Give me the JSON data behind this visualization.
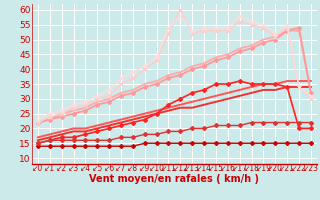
{
  "background_color": "#cceaea",
  "grid_color": "#ffffff",
  "xlabel": "Vent moyen/en rafales ( km/h )",
  "xlabel_color": "#cc0000",
  "xlabel_fontsize": 7,
  "yticks": [
    10,
    15,
    20,
    25,
    30,
    35,
    40,
    45,
    50,
    55,
    60
  ],
  "xticks": [
    0,
    1,
    2,
    3,
    4,
    5,
    6,
    7,
    8,
    9,
    10,
    11,
    12,
    13,
    14,
    15,
    16,
    17,
    18,
    19,
    20,
    21,
    22,
    23
  ],
  "ylim": [
    8,
    62
  ],
  "xlim": [
    -0.5,
    23.5
  ],
  "lines": [
    {
      "x": [
        0,
        1,
        2,
        3,
        4,
        5,
        6,
        7,
        8,
        9,
        10,
        11,
        12,
        13,
        14,
        15,
        16,
        17,
        18,
        19,
        20,
        21,
        22,
        23
      ],
      "y": [
        14,
        14,
        14,
        14,
        14,
        14,
        14,
        14,
        14,
        15,
        15,
        15,
        15,
        15,
        15,
        15,
        15,
        15,
        15,
        15,
        15,
        15,
        15,
        15
      ],
      "color": "#cc0000",
      "lw": 1.0,
      "marker": "D",
      "ms": 2.0,
      "zorder": 6
    },
    {
      "x": [
        0,
        1,
        2,
        3,
        4,
        5,
        6,
        7,
        8,
        9,
        10,
        11,
        12,
        13,
        14,
        15,
        16,
        17,
        18,
        19,
        20,
        21,
        22,
        23
      ],
      "y": [
        15,
        16,
        16,
        16,
        16,
        16,
        16,
        17,
        17,
        18,
        18,
        19,
        19,
        20,
        20,
        21,
        21,
        21,
        22,
        22,
        22,
        22,
        22,
        22
      ],
      "color": "#dd3333",
      "lw": 1.0,
      "marker": "D",
      "ms": 2.0,
      "zorder": 6
    },
    {
      "x": [
        0,
        1,
        2,
        3,
        4,
        5,
        6,
        7,
        8,
        9,
        10,
        11,
        12,
        13,
        14,
        15,
        16,
        17,
        18,
        19,
        20,
        21,
        22,
        23
      ],
      "y": [
        15,
        16,
        17,
        17,
        18,
        19,
        20,
        21,
        22,
        23,
        25,
        28,
        30,
        32,
        33,
        35,
        35,
        36,
        35,
        35,
        35,
        34,
        20,
        20
      ],
      "color": "#ff2222",
      "lw": 1.2,
      "marker": "D",
      "ms": 2.0,
      "zorder": 5
    },
    {
      "x": [
        0,
        1,
        2,
        3,
        4,
        5,
        6,
        7,
        8,
        9,
        10,
        11,
        12,
        13,
        14,
        15,
        16,
        17,
        18,
        19,
        20,
        21,
        22,
        23
      ],
      "y": [
        16,
        17,
        18,
        19,
        19,
        20,
        21,
        22,
        23,
        24,
        25,
        26,
        27,
        27,
        28,
        29,
        30,
        31,
        32,
        33,
        33,
        34,
        34,
        34
      ],
      "color": "#ee3333",
      "lw": 1.4,
      "marker": null,
      "ms": 0,
      "zorder": 3
    },
    {
      "x": [
        0,
        1,
        2,
        3,
        4,
        5,
        6,
        7,
        8,
        9,
        10,
        11,
        12,
        13,
        14,
        15,
        16,
        17,
        18,
        19,
        20,
        21,
        22,
        23
      ],
      "y": [
        17,
        18,
        19,
        20,
        20,
        21,
        22,
        23,
        24,
        25,
        26,
        27,
        28,
        29,
        30,
        31,
        32,
        33,
        34,
        35,
        35,
        36,
        36,
        36
      ],
      "color": "#ff5555",
      "lw": 1.4,
      "marker": null,
      "ms": 0,
      "zorder": 3
    },
    {
      "x": [
        0,
        1,
        2,
        3,
        4,
        5,
        6,
        7,
        8,
        9,
        10,
        11,
        12,
        13,
        14,
        15,
        16,
        17,
        18,
        19,
        20,
        21,
        22,
        23
      ],
      "y": [
        22,
        23,
        24,
        25,
        26,
        28,
        29,
        31,
        32,
        34,
        35,
        37,
        38,
        40,
        41,
        43,
        44,
        46,
        47,
        49,
        50,
        53,
        54,
        32
      ],
      "color": "#ff9999",
      "lw": 1.3,
      "marker": "D",
      "ms": 2.0,
      "zorder": 4
    },
    {
      "x": [
        0,
        1,
        2,
        3,
        4,
        5,
        6,
        7,
        8,
        9,
        10,
        11,
        12,
        13,
        14,
        15,
        16,
        17,
        18,
        19,
        20,
        21,
        22,
        23
      ],
      "y": [
        22,
        23,
        25,
        26,
        27,
        29,
        30,
        32,
        33,
        35,
        36,
        38,
        39,
        41,
        42,
        44,
        45,
        47,
        48,
        50,
        51,
        53,
        53,
        32
      ],
      "color": "#ffaaaa",
      "lw": 1.3,
      "marker": null,
      "ms": 0,
      "zorder": 3
    },
    {
      "x": [
        0,
        1,
        2,
        3,
        4,
        5,
        6,
        7,
        8,
        9,
        10,
        11,
        12,
        13,
        14,
        15,
        16,
        17,
        18,
        19,
        20,
        21,
        22,
        23
      ],
      "y": [
        22,
        24,
        25,
        27,
        28,
        30,
        31,
        35,
        37,
        40,
        43,
        52,
        60,
        52,
        53,
        53,
        53,
        56,
        55,
        54,
        51,
        54,
        34,
        30
      ],
      "color": "#ffcccc",
      "lw": 1.0,
      "marker": "x",
      "ms": 3.5,
      "zorder": 4
    },
    {
      "x": [
        0,
        1,
        2,
        3,
        4,
        5,
        6,
        7,
        8,
        9,
        10,
        11,
        12,
        13,
        14,
        15,
        16,
        17,
        18,
        19,
        20,
        21,
        22,
        23
      ],
      "y": [
        23,
        25,
        26,
        28,
        29,
        31,
        33,
        37,
        39,
        41,
        44,
        54,
        58,
        53,
        54,
        54,
        54,
        58,
        56,
        55,
        52,
        55,
        34,
        31
      ],
      "color": "#ffdddd",
      "lw": 1.0,
      "marker": "x",
      "ms": 3.5,
      "zorder": 4
    }
  ],
  "tick_arrow_color": "#cc0000",
  "tick_fontsize": 5.5,
  "ytick_fontsize": 6.5
}
